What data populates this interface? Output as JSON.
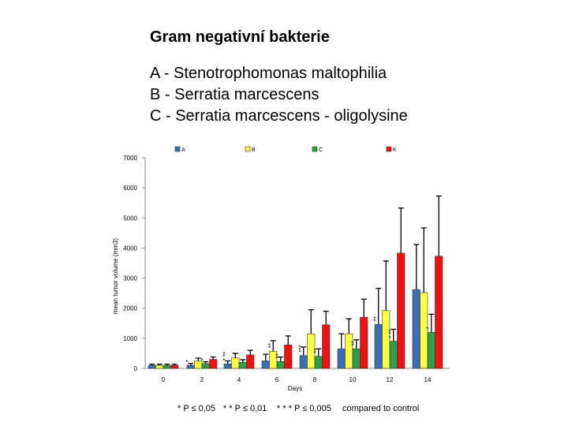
{
  "header": {
    "title": "Gram negativní bakterie",
    "lines": [
      "A - Stenotrophomonas maltophilia",
      "B - Serratia marcescens",
      "C - Serratia marcescens - oligolysine"
    ]
  },
  "footnotes": [
    "* P ≤ 0,05",
    "* * P ≤ 0,01",
    "* * * P ≤ 0,005",
    "compared to control"
  ],
  "chart_data": {
    "type": "bar",
    "title": "",
    "xlabel": "Days",
    "ylabel": "mean tumor volume (mm3)",
    "ylim": [
      0,
      7000
    ],
    "yticks": [
      0,
      1000,
      2000,
      3000,
      4000,
      5000,
      6000,
      7000
    ],
    "categories": [
      "0",
      "2",
      "4",
      "6",
      "8",
      "10",
      "12",
      "14"
    ],
    "legend_position": "top",
    "series": [
      {
        "name": "A",
        "color": "#3a6fb5",
        "values": [
          100,
          100,
          150,
          250,
          430,
          650,
          1460,
          2620
        ],
        "errors": [
          40,
          60,
          100,
          220,
          280,
          500,
          1200,
          1500
        ]
      },
      {
        "name": "B",
        "color": "#ffff44",
        "values": [
          100,
          250,
          350,
          570,
          1150,
          1150,
          1920,
          2520
        ],
        "errors": [
          40,
          90,
          150,
          350,
          800,
          500,
          1650,
          2150
        ]
      },
      {
        "name": "C",
        "color": "#2e9e4e",
        "values": [
          100,
          160,
          200,
          230,
          400,
          650,
          900,
          1200
        ],
        "errors": [
          40,
          60,
          90,
          150,
          250,
          300,
          400,
          600
        ]
      },
      {
        "name": "K",
        "color": "#ee1111",
        "values": [
          100,
          300,
          450,
          780,
          1450,
          1700,
          3830,
          3730
        ],
        "errors": [
          40,
          80,
          150,
          300,
          450,
          600,
          1500,
          2000
        ]
      }
    ],
    "annotations": [
      {
        "category": "2",
        "series": "A",
        "text": "*"
      },
      {
        "category": "2",
        "series": "C",
        "text": "*"
      },
      {
        "category": "4",
        "series": "A",
        "text": "* **"
      },
      {
        "category": "6",
        "series": "B",
        "text": "**"
      },
      {
        "category": "6",
        "series": "C",
        "text": "**"
      },
      {
        "category": "8",
        "series": "A",
        "text": "***"
      },
      {
        "category": "8",
        "series": "C",
        "text": "**"
      },
      {
        "category": "10",
        "series": "C",
        "text": "**"
      },
      {
        "category": "12",
        "series": "A",
        "text": "**"
      },
      {
        "category": "12",
        "series": "C",
        "text": "* **"
      },
      {
        "category": "14",
        "series": "C",
        "text": "*"
      }
    ]
  }
}
